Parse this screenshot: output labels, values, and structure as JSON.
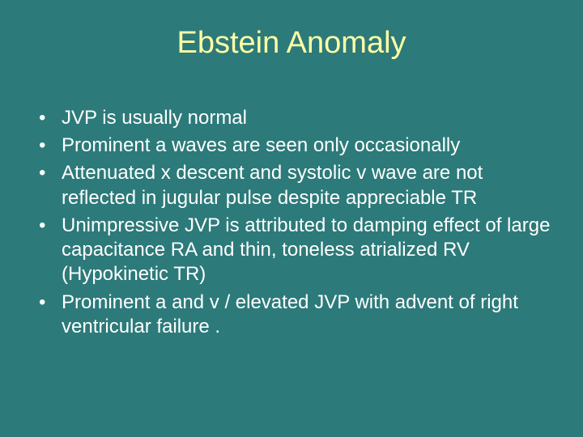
{
  "slide": {
    "background_color": "#2d7a7a",
    "title": {
      "text": "Ebstein Anomaly",
      "color": "#ffffa5",
      "fontsize": 38,
      "font_weight": 400,
      "align": "center"
    },
    "bullets": {
      "color": "#ffffff",
      "fontsize": 24,
      "marker": "•",
      "items": [
        "JVP is usually normal",
        "Prominent a waves are seen only occasionally",
        "Attenuated x descent and systolic v wave are not reflected in jugular pulse despite appreciable TR",
        "Unimpressive JVP is attributed to damping effect of large capacitance RA and thin, toneless atrialized RV (Hypokinetic TR)",
        "Prominent a and v / elevated JVP with advent of right ventricular failure ."
      ]
    }
  }
}
